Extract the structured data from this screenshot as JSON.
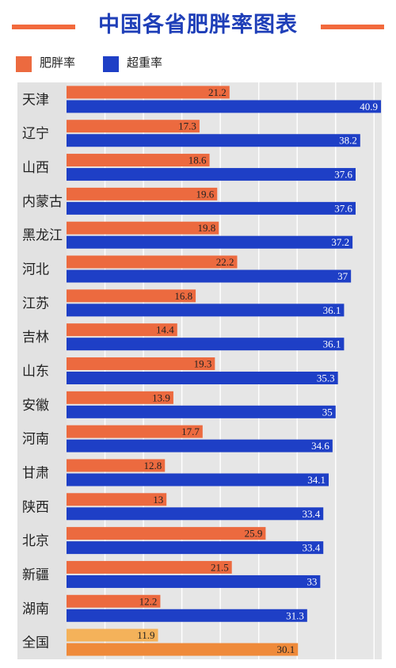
{
  "title": "中国各省肥胖率图表",
  "colors": {
    "title": "#1f3fb8",
    "obesity": "#ec6a3f",
    "overweight": "#1e3fc6",
    "national_obesity": "#f4b25a",
    "national_overweight": "#ef8a3a",
    "plot_bg": "#e6e6e6",
    "label_bg": "#e2e2e2"
  },
  "legend": {
    "obesity_label": "肥胖率",
    "overweight_label": "超重率"
  },
  "chart_data": {
    "type": "bar",
    "orientation": "horizontal",
    "categories": [
      "天津",
      "辽宁",
      "山西",
      "内蒙古",
      "黑龙江",
      "河北",
      "江苏",
      "吉林",
      "山东",
      "安徽",
      "河南",
      "甘肃",
      "陕西",
      "北京",
      "新疆",
      "湖南",
      "全国"
    ],
    "series": [
      {
        "name": "肥胖率",
        "values": [
          21.2,
          17.3,
          18.6,
          19.6,
          19.8,
          22.2,
          16.8,
          14.4,
          19.3,
          13.9,
          17.7,
          12.8,
          13,
          25.9,
          21.5,
          12.2,
          11.9
        ]
      },
      {
        "name": "超重率",
        "values": [
          40.9,
          38.2,
          37.6,
          37.6,
          37.2,
          37,
          36.1,
          36.1,
          35.3,
          35,
          34.6,
          34.1,
          33.4,
          33.4,
          33,
          31.3,
          30.1
        ]
      }
    ],
    "value_labels": [
      [
        "21.2",
        "17.3",
        "18.6",
        "19.6",
        "19.8",
        "22.2",
        "16.8",
        "14.4",
        "19.3",
        "13.9",
        "17.7",
        "12.8",
        "13",
        "25.9",
        "21.5",
        "12.2",
        "11.9"
      ],
      [
        "40.9",
        "38.2",
        "37.6",
        "37.6",
        "37.2",
        "37",
        "36.1",
        "36.1",
        "35.3",
        "35",
        "34.6",
        "34.1",
        "33.4",
        "33.4",
        "33",
        "31.3",
        "30.1"
      ]
    ],
    "xlim": [
      0,
      41
    ],
    "highlight_category": "全国",
    "grid": true,
    "legend_position": "top-left"
  }
}
